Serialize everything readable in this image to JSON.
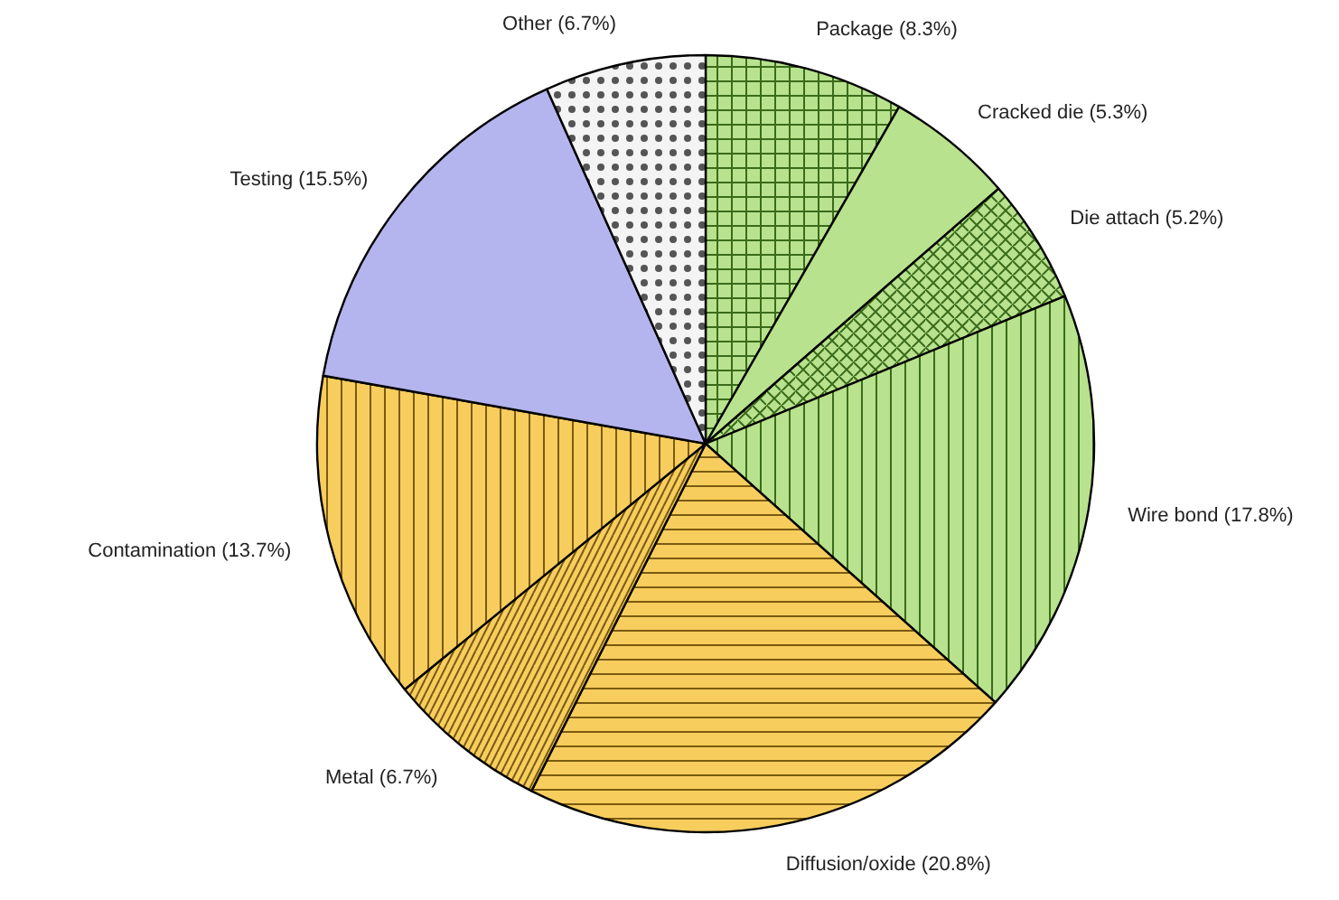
{
  "chart_data": {
    "type": "pie",
    "categories": [
      "Package (8.3%)",
      "Cracked die (5.3%)",
      "Die attach (5.2%)",
      "Wire bond (17.8%)",
      "Diffusion/oxide (20.8%)",
      "Metal (6.7%)",
      "Contamination (13.7%)",
      "Testing (15.5%)",
      "Other (6.7%)"
    ],
    "values": [
      8.3,
      5.3,
      5.2,
      17.8,
      20.8,
      6.7,
      13.7,
      15.5,
      6.7
    ],
    "colors": [
      "#b8e28e",
      "#b8e28e",
      "#b8e28e",
      "#b8e28e",
      "#f7cd5e",
      "#f7cd5e",
      "#f7cd5e",
      "#b4b4ee",
      "#f4f4f4"
    ]
  }
}
